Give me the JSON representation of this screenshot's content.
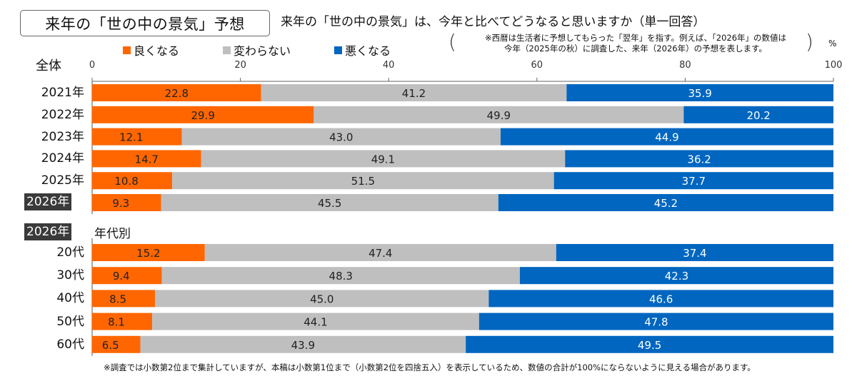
{
  "header": {
    "title": "来年の「世の中の景気」予想",
    "subtitle": "来年の「世の中の景気」は、今年と比べてどうなると思いますか（単一回答）",
    "note_line1": "※西暦は生活者に予想してもらった「翌年」を指す。例えば、「2026年」の数値は",
    "note_line2": "今年（2025年の秋）に調査した、来年（2026年）の予想を表します。",
    "unit": "%"
  },
  "section_overall_label": "全体",
  "section_age_badge": "2026年",
  "section_age_label": "年代別",
  "footnote": "※調査では小数第2位まで集計していますが、本稿は小数第1位まで（小数第2位を四捨五入）を表示しているため、数値の合計が100%にならないように見える場合があります。",
  "chart_data": {
    "type": "bar",
    "orientation": "horizontal",
    "stacked": true,
    "title": "来年の「世の中の景気」予想",
    "xlabel": "%",
    "ylabel": "",
    "xlim": [
      0,
      100
    ],
    "xticks": [
      0,
      20,
      40,
      60,
      80,
      100
    ],
    "legend": {
      "placement": "top",
      "entries": [
        "良くなる",
        "変わらない",
        "悪くなる"
      ]
    },
    "colors": {
      "better": "#ff6600",
      "same": "#bfbfbf",
      "worse": "#0066c0"
    },
    "groups": [
      {
        "name": "全体",
        "categories": [
          "2021年",
          "2022年",
          "2023年",
          "2024年",
          "2025年",
          "2026年"
        ],
        "highlight": "2026年",
        "series": [
          {
            "name": "良くなる",
            "values": [
              22.8,
              29.9,
              12.1,
              14.7,
              10.8,
              9.3
            ]
          },
          {
            "name": "変わらない",
            "values": [
              41.2,
              49.9,
              43.0,
              49.1,
              51.5,
              45.5
            ]
          },
          {
            "name": "悪くなる",
            "values": [
              35.9,
              20.2,
              44.9,
              36.2,
              37.7,
              45.2
            ]
          }
        ]
      },
      {
        "name": "2026年 年代別",
        "categories": [
          "20代",
          "30代",
          "40代",
          "50代",
          "60代"
        ],
        "series": [
          {
            "name": "良くなる",
            "values": [
              15.2,
              9.4,
              8.5,
              8.1,
              6.5
            ]
          },
          {
            "name": "変わらない",
            "values": [
              47.4,
              48.3,
              45.0,
              44.1,
              43.9
            ]
          },
          {
            "name": "悪くなる",
            "values": [
              37.4,
              42.3,
              46.6,
              47.8,
              49.5
            ]
          }
        ]
      }
    ]
  }
}
